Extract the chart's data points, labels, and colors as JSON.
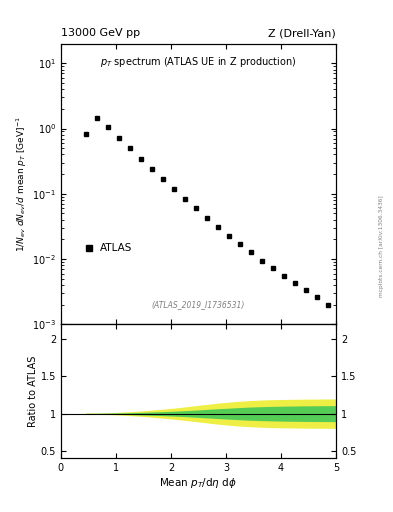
{
  "title_left": "13000 GeV pp",
  "title_right": "Z (Drell-Yan)",
  "subtitle": "p_{T} spectrum (ATLAS UE in Z production)",
  "watermark": "(ATLAS_2019_I1736531)",
  "arxiv_label": "mcplots.cern.ch [arXiv:1306.3436]",
  "xlabel": "Mean $p_T$/d\\eta d\\phi",
  "ylabel_main": "1/N_{ev} dN_{ev}/d mean p_{T} [GeV]^{-1}",
  "ylabel_ratio": "Ratio to ATLAS",
  "legend_label": "ATLAS",
  "xlim": [
    0,
    5.0
  ],
  "ylim_main": [
    0.001,
    20
  ],
  "ylim_ratio": [
    0.4,
    2.2
  ],
  "ratio_yticks": [
    0.5,
    1.0,
    1.5,
    2.0
  ],
  "data_x": [
    0.45,
    0.65,
    0.85,
    1.05,
    1.25,
    1.45,
    1.65,
    1.85,
    2.05,
    2.25,
    2.45,
    2.65,
    2.85,
    3.05,
    3.25,
    3.45,
    3.65,
    3.85,
    4.05,
    4.25,
    4.45,
    4.65,
    4.85
  ],
  "data_y": [
    0.82,
    1.45,
    1.05,
    0.72,
    0.5,
    0.345,
    0.24,
    0.168,
    0.118,
    0.084,
    0.06,
    0.043,
    0.031,
    0.023,
    0.017,
    0.013,
    0.0095,
    0.0073,
    0.0056,
    0.0043,
    0.0034,
    0.0026,
    0.002
  ],
  "band_x": [
    0.45,
    0.65,
    0.85,
    1.05,
    1.25,
    1.45,
    1.65,
    1.85,
    2.05,
    2.25,
    2.45,
    2.65,
    2.85,
    3.05,
    3.25,
    3.45,
    3.65,
    3.85,
    4.05,
    4.25,
    4.45,
    4.65,
    4.85,
    5.0
  ],
  "band_upper_green": [
    1.005,
    1.005,
    1.007,
    1.01,
    1.013,
    1.017,
    1.022,
    1.027,
    1.033,
    1.04,
    1.048,
    1.057,
    1.066,
    1.074,
    1.082,
    1.089,
    1.094,
    1.098,
    1.101,
    1.103,
    1.105,
    1.106,
    1.107,
    1.108
  ],
  "band_lower_green": [
    0.995,
    0.995,
    0.993,
    0.99,
    0.987,
    0.983,
    0.978,
    0.973,
    0.967,
    0.96,
    0.952,
    0.943,
    0.934,
    0.926,
    0.918,
    0.911,
    0.906,
    0.902,
    0.899,
    0.897,
    0.895,
    0.894,
    0.893,
    0.892
  ],
  "band_upper_yellow": [
    1.008,
    1.008,
    1.012,
    1.018,
    1.026,
    1.035,
    1.047,
    1.06,
    1.074,
    1.09,
    1.107,
    1.124,
    1.141,
    1.155,
    1.167,
    1.176,
    1.183,
    1.188,
    1.191,
    1.193,
    1.195,
    1.196,
    1.197,
    1.198
  ],
  "band_lower_yellow": [
    0.992,
    0.992,
    0.988,
    0.982,
    0.974,
    0.965,
    0.953,
    0.94,
    0.926,
    0.91,
    0.893,
    0.876,
    0.859,
    0.845,
    0.833,
    0.824,
    0.817,
    0.812,
    0.809,
    0.807,
    0.805,
    0.804,
    0.803,
    0.802
  ],
  "ratio_line_y": 1.0,
  "marker_color": "black",
  "marker_style": "s",
  "marker_size": 3.5,
  "green_color": "#55cc55",
  "yellow_color": "#eeee44",
  "background_color": "#ffffff"
}
